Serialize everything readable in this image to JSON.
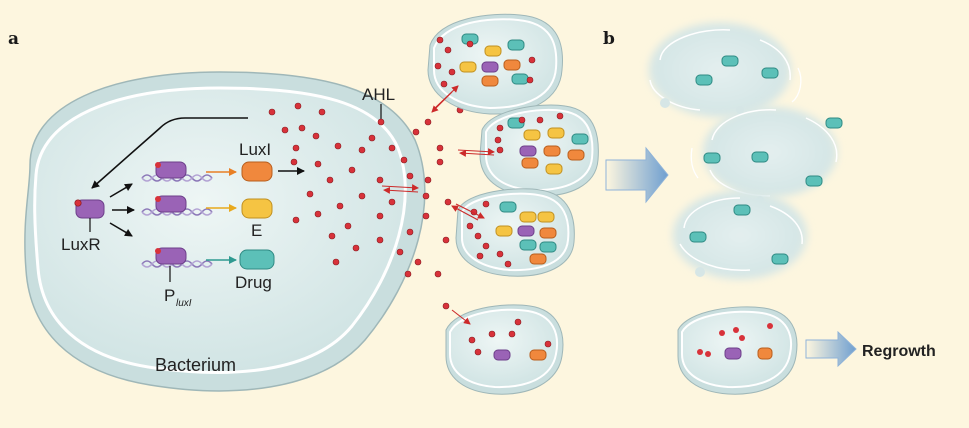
{
  "panels": {
    "a": "a",
    "b": "b"
  },
  "labels": {
    "luxR": "LuxR",
    "luxI": "LuxI",
    "e": "E",
    "drug": "Drug",
    "promoter_main": "P",
    "promoter_sub": "luxI",
    "bacterium": "Bacterium",
    "ahl": "AHL",
    "regrowth": "Regrowth"
  },
  "colors": {
    "background": "#fdf6df",
    "cell_fill": "#dfeeee",
    "luxR_protein": "#9a63b6",
    "luxI_protein": "#f0883d",
    "e_protein": "#f5c443",
    "drug_protein": "#5cc0b8",
    "ahl_molecule": "#d8323a",
    "dna": "#8c78b8"
  }
}
